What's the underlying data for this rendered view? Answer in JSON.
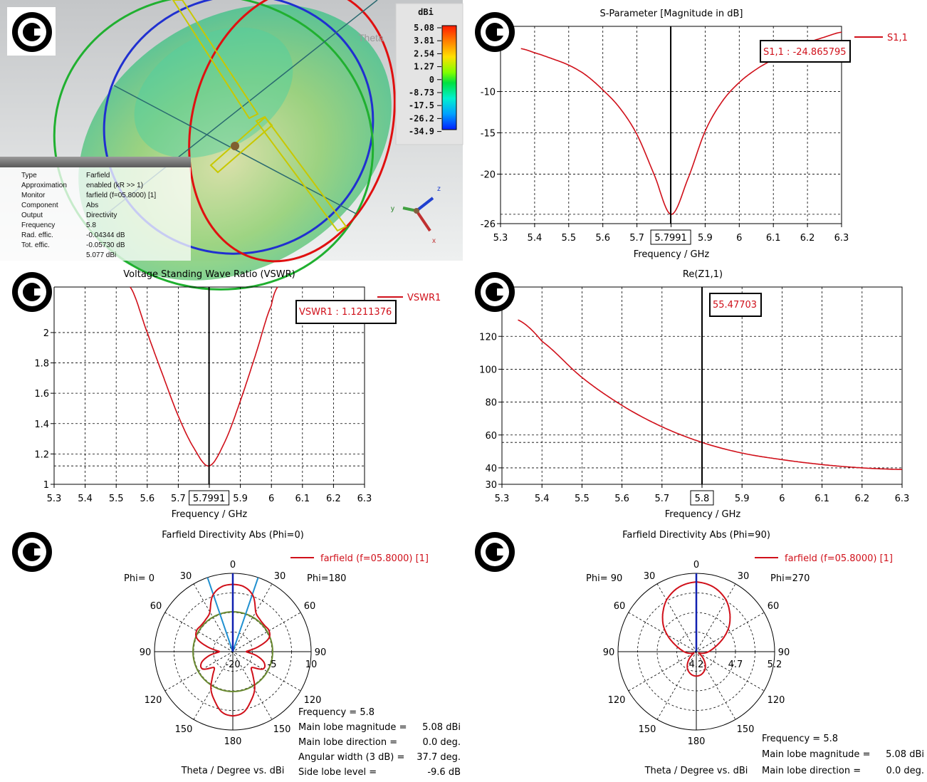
{
  "panel_3d": {
    "colorbar": {
      "unit": "dBi",
      "ticks": [
        "5.08",
        "3.81",
        "2.54",
        "1.27",
        "0",
        "-8.73",
        "-17.5",
        "-26.2",
        "-34.9"
      ],
      "ghost_label": "Theta",
      "colors": [
        "#ff1a00",
        "#ff7a00",
        "#ffd400",
        "#f0ff00",
        "#90ff00",
        "#00e040",
        "#00f0c0",
        "#00b0ff",
        "#0030ff"
      ]
    },
    "info": {
      "rows": [
        {
          "label": "Type",
          "value": "Farfield"
        },
        {
          "label": "Approximation",
          "value": "enabled (kR >> 1)"
        },
        {
          "label": "Monitor",
          "value": "farfield (f=05.8000) [1]"
        },
        {
          "label": "Component",
          "value": "Abs"
        },
        {
          "label": "Output",
          "value": "Directivity"
        },
        {
          "label": "Frequency",
          "value": "5.8"
        },
        {
          "label": "Rad. effic.",
          "value": "-0.04344 dB"
        },
        {
          "label": "Tot. effic.",
          "value": "-0.05730 dB"
        },
        {
          "label": "",
          "value": "5.077 dBi"
        }
      ]
    },
    "axes": {
      "x": "x",
      "y": "y",
      "z": "z"
    }
  },
  "icons": {
    "watermark": "copyright-icon"
  },
  "chart_data": [
    {
      "type": "line",
      "title": "S-Parameter [Magnitude in dB]",
      "xlabel": "Frequency / GHz",
      "ylabel": "",
      "xlim": [
        5.3,
        6.3
      ],
      "ylim": [
        -26,
        -2.1
      ],
      "xticks": [
        "5.3",
        "5.4",
        "5.5",
        "5.6",
        "5.7",
        "5.8",
        "5.9",
        "6",
        "6.1",
        "6.2",
        "6.3"
      ],
      "yticks": [
        "-26",
        "-20",
        "-15",
        "-10"
      ],
      "grid": true,
      "legend": "top-right",
      "series": [
        {
          "name": "S1,1",
          "color": "#d0101a",
          "x": [
            5.36,
            5.4,
            5.45,
            5.5,
            5.55,
            5.6,
            5.65,
            5.7,
            5.75,
            5.8,
            5.85,
            5.9,
            5.95,
            6.0,
            6.05,
            6.1,
            6.15,
            6.2,
            6.25,
            6.3
          ],
          "y": [
            -4.8,
            -5.3,
            -6.0,
            -6.8,
            -8.0,
            -9.8,
            -12.0,
            -15.2,
            -20.0,
            -24.87,
            -20.5,
            -14.8,
            -11.2,
            -8.9,
            -7.3,
            -6.1,
            -5.0,
            -4.1,
            -3.4,
            -2.8
          ]
        }
      ],
      "marker": {
        "x": 5.7991,
        "x_label": "5.7991",
        "y": -24.865795,
        "label": "S1,1 : -24.865795"
      }
    },
    {
      "type": "line",
      "title": "Voltage Standing Wave Ratio (VSWR)",
      "xlabel": "Frequency / GHz",
      "ylabel": "",
      "xlim": [
        5.3,
        6.3
      ],
      "ylim": [
        1,
        2.3
      ],
      "xticks": [
        "5.3",
        "5.4",
        "5.5",
        "5.6",
        "5.7",
        "5.8",
        "5.9",
        "6",
        "6.1",
        "6.2",
        "6.3"
      ],
      "yticks": [
        "1",
        "1.2",
        "1.4",
        "1.6",
        "1.8",
        "2"
      ],
      "grid": true,
      "legend": "top-right",
      "series": [
        {
          "name": "VSWR1",
          "color": "#d0101a",
          "x": [
            5.545,
            5.6,
            5.65,
            5.7,
            5.75,
            5.7991,
            5.85,
            5.9,
            5.95,
            6.0,
            6.02
          ],
          "y": [
            2.3,
            2.0,
            1.72,
            1.45,
            1.24,
            1.1211376,
            1.28,
            1.55,
            1.86,
            2.18,
            2.3
          ]
        }
      ],
      "marker": {
        "x": 5.7991,
        "x_label": "5.7991",
        "y": 1.1211376,
        "label": "VSWR1 : 1.1211376"
      }
    },
    {
      "type": "line",
      "title": "Re(Z1,1)",
      "xlabel": "Frequency / GHz",
      "ylabel": "",
      "xlim": [
        5.3,
        6.3
      ],
      "ylim": [
        30,
        150
      ],
      "xticks": [
        "5.3",
        "5.4",
        "5.5",
        "5.6",
        "5.7",
        "5.8",
        "5.9",
        "6",
        "6.1",
        "6.2",
        "6.3"
      ],
      "yticks": [
        "30",
        "40",
        "60",
        "80",
        "100",
        "120"
      ],
      "grid": true,
      "legend": "none",
      "series": [
        {
          "color": "#d0101a",
          "x": [
            5.34,
            5.4,
            5.5,
            5.6,
            5.7,
            5.8,
            5.9,
            6.0,
            6.1,
            6.2,
            6.3
          ],
          "y": [
            130,
            117,
            95,
            78,
            65,
            55.47703,
            49,
            45,
            42,
            40,
            39
          ]
        }
      ],
      "marker": {
        "x": 5.8,
        "x_label": "5.8",
        "y": 55.47703,
        "label": "55.47703"
      }
    },
    {
      "type": "polar",
      "title": "Farfield Directivity Abs (Phi=0)",
      "xlabel": "Theta / Degree vs. dBi",
      "left_label": "Phi=  0",
      "right_label": "Phi=180",
      "angle_labels": [
        "0",
        "30",
        "60",
        "90",
        "120",
        "150",
        "180"
      ],
      "ring_labels": [
        "-20",
        "-5",
        "10"
      ],
      "rlim": [
        -25,
        10
      ],
      "legend": "top-right",
      "series": [
        {
          "name": "farfield (f=05.8000) [1]",
          "color": "#d0101a",
          "theta": [
            0,
            10,
            20,
            30,
            40,
            50,
            60,
            70,
            80,
            90,
            100,
            110,
            120,
            130,
            140,
            150,
            160,
            170,
            180
          ],
          "dbi": [
            5.08,
            4.4,
            1.5,
            -4.5,
            -6.2,
            -6.6,
            -6.3,
            -8,
            -14,
            -19,
            -14,
            -10,
            -9.5,
            -14,
            -11,
            -5.5,
            -1.5,
            2.5,
            3.7
          ]
        }
      ],
      "reference_circle_dbi": -7.2,
      "beam_edges_deg": [
        -18.85,
        18.85
      ],
      "stats": [
        {
          "label": "Frequency = 5.8",
          "value": ""
        },
        {
          "label": "Main lobe magnitude =",
          "value": "5.08 dBi"
        },
        {
          "label": "Main lobe direction =",
          "value": "0.0 deg."
        },
        {
          "label": "Angular width (3 dB) =",
          "value": "37.7 deg."
        },
        {
          "label": "Side lobe level =",
          "value": "-9.6 dB"
        }
      ]
    },
    {
      "type": "polar",
      "title": "Farfield Directivity Abs (Phi=90)",
      "xlabel": "Theta / Degree vs. dBi",
      "left_label": "Phi= 90",
      "right_label": "Phi=270",
      "angle_labels": [
        "0",
        "30",
        "60",
        "90",
        "120",
        "150",
        "180"
      ],
      "ring_labels": [
        "4.2",
        "4.7",
        "5.2"
      ],
      "rlim": [
        4.11,
        5.2
      ],
      "legend": "top-right",
      "series": [
        {
          "name": "farfield (f=05.8000) [1]",
          "color": "#d0101a",
          "theta": [
            0,
            15,
            30,
            42,
            52,
            62,
            72,
            82,
            92,
            105,
            120,
            135,
            150,
            160,
            170,
            180
          ],
          "dbi": [
            5.08,
            5.04,
            4.94,
            4.81,
            4.69,
            4.55,
            4.42,
            4.33,
            4.27,
            4.2,
            4.15,
            4.25,
            4.36,
            4.41,
            4.44,
            4.45
          ]
        }
      ],
      "stats": [
        {
          "label": "Frequency = 5.8",
          "value": ""
        },
        {
          "label": "Main lobe magnitude =",
          "value": "5.08 dBi"
        },
        {
          "label": "Main lobe direction =",
          "value": "0.0 deg."
        }
      ]
    }
  ]
}
